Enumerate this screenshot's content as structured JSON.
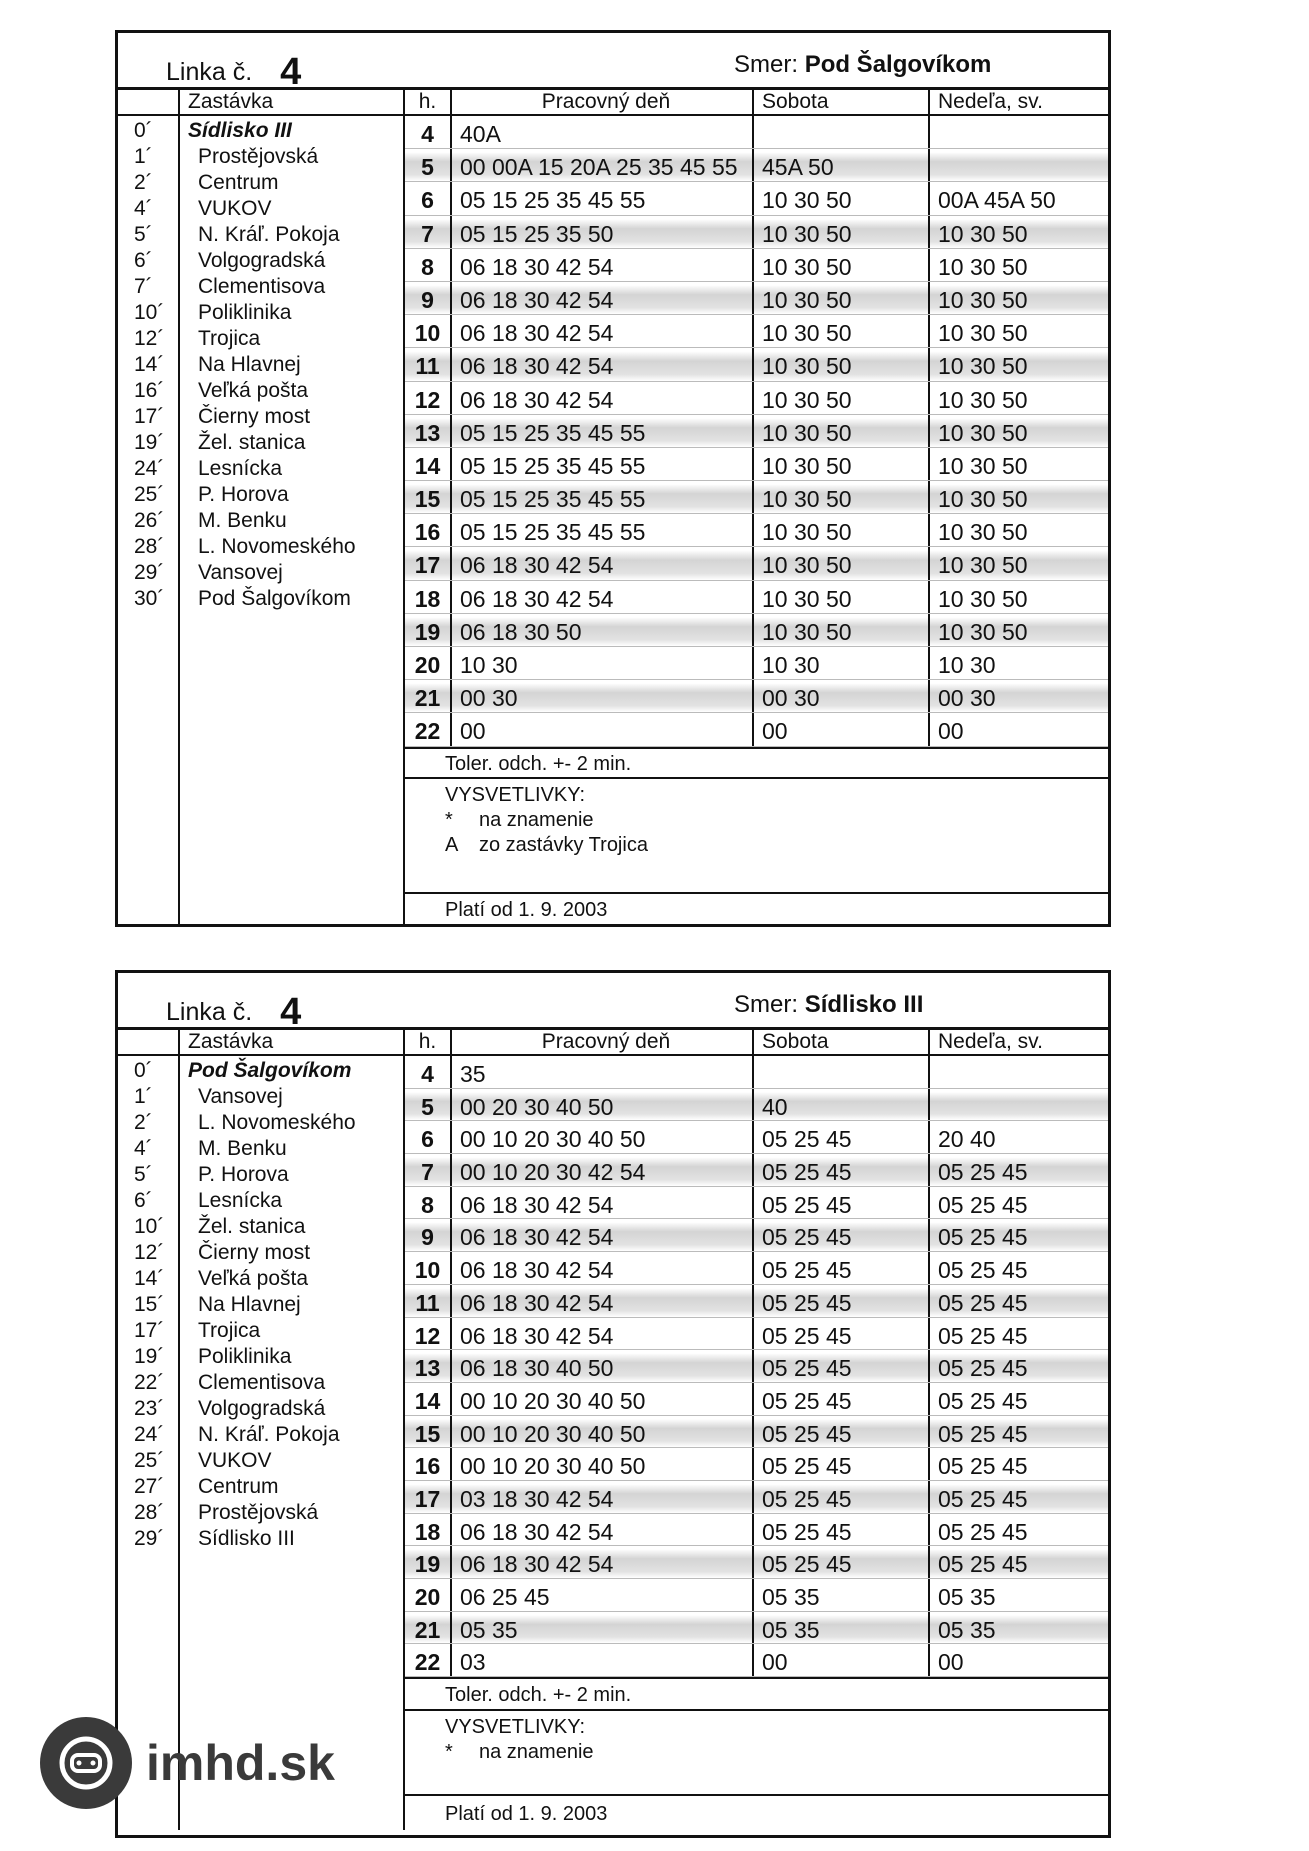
{
  "tables": [
    {
      "line_label": "Linka č.",
      "line": "4",
      "dir_label": "Smer:",
      "direction": "Pod Šalgovíkom",
      "headers": {
        "stop": "Zastávka",
        "hour": "h.",
        "work": "Pracovný deň",
        "sat": "Sobota",
        "sun": "Nedeľa, sv."
      },
      "stops": [
        [
          "0´",
          "Sídlisko III"
        ],
        [
          "1´",
          "Prostějovská"
        ],
        [
          "2´",
          "Centrum"
        ],
        [
          "4´",
          "VUKOV"
        ],
        [
          "5´",
          "N. Kráľ. Pokoja"
        ],
        [
          "6´",
          "Volgogradská"
        ],
        [
          "7´",
          "Clementisova"
        ],
        [
          "10´",
          "Poliklinika"
        ],
        [
          "12´",
          "Trojica"
        ],
        [
          "14´",
          "Na Hlavnej"
        ],
        [
          "16´",
          "Veľká pošta"
        ],
        [
          "17´",
          "Čierny most"
        ],
        [
          "19´",
          "Žel. stanica"
        ],
        [
          "24´",
          "Lesnícka"
        ],
        [
          "25´",
          "P. Horova"
        ],
        [
          "26´",
          "M. Benku"
        ],
        [
          "28´",
          "L. Novomeského"
        ],
        [
          "29´",
          "Vansovej"
        ],
        [
          "30´",
          "Pod Šalgovíkom"
        ]
      ],
      "rows": [
        [
          "4",
          "40A",
          "",
          ""
        ],
        [
          "5",
          "00 00A 15 20A 25 35 45 55",
          "45A 50",
          ""
        ],
        [
          "6",
          "05 15 25 35 45 55",
          "10 30 50",
          "00A 45A 50"
        ],
        [
          "7",
          "05 15 25 35 50",
          "10 30 50",
          "10 30 50"
        ],
        [
          "8",
          "06 18 30 42 54",
          "10 30 50",
          "10 30 50"
        ],
        [
          "9",
          "06 18 30 42 54",
          "10 30 50",
          "10 30 50"
        ],
        [
          "10",
          "06 18 30 42 54",
          "10 30 50",
          "10 30 50"
        ],
        [
          "11",
          "06 18 30 42 54",
          "10 30 50",
          "10 30 50"
        ],
        [
          "12",
          "06 18 30 42 54",
          "10 30 50",
          "10 30 50"
        ],
        [
          "13",
          "05 15 25 35 45 55",
          "10 30 50",
          "10 30 50"
        ],
        [
          "14",
          "05 15 25 35 45 55",
          "10 30 50",
          "10 30 50"
        ],
        [
          "15",
          "05 15 25 35 45 55",
          "10 30 50",
          "10 30 50"
        ],
        [
          "16",
          "05 15 25 35 45 55",
          "10 30 50",
          "10 30 50"
        ],
        [
          "17",
          "06 18 30 42 54",
          "10 30 50",
          "10 30 50"
        ],
        [
          "18",
          "06 18 30 42 54",
          "10 30 50",
          "10 30 50"
        ],
        [
          "19",
          "06 18 30 50",
          "10 30 50",
          "10 30 50"
        ],
        [
          "20",
          "10 30",
          "10 30",
          "10 30"
        ],
        [
          "21",
          "00 30",
          "00 30",
          "00 30"
        ],
        [
          "22",
          "00",
          "00",
          "00"
        ]
      ],
      "tolerance": "Toler. odch. +- 2 min.",
      "legend_title": "VYSVETLIVKY:",
      "legend": [
        [
          "*",
          "na znamenie"
        ],
        [
          "A",
          "zo zastávky Trojica"
        ]
      ],
      "valid": "Platí od 1. 9. 2003"
    },
    {
      "line_label": "Linka č.",
      "line": "4",
      "dir_label": "Smer:",
      "direction": "Sídlisko III",
      "headers": {
        "stop": "Zastávka",
        "hour": "h.",
        "work": "Pracovný deň",
        "sat": "Sobota",
        "sun": "Nedeľa, sv."
      },
      "stops": [
        [
          "0´",
          "Pod Šalgovíkom"
        ],
        [
          "1´",
          "Vansovej"
        ],
        [
          "2´",
          "L. Novomeského"
        ],
        [
          "4´",
          "M. Benku"
        ],
        [
          "5´",
          "P. Horova"
        ],
        [
          "6´",
          "Lesnícka"
        ],
        [
          "10´",
          "Žel. stanica"
        ],
        [
          "12´",
          "Čierny most"
        ],
        [
          "14´",
          "Veľká pošta"
        ],
        [
          "15´",
          "Na Hlavnej"
        ],
        [
          "17´",
          "Trojica"
        ],
        [
          "19´",
          "Poliklinika"
        ],
        [
          "22´",
          "Clementisova"
        ],
        [
          "23´",
          "Volgogradská"
        ],
        [
          "24´",
          "N. Kráľ. Pokoja"
        ],
        [
          "25´",
          "VUKOV"
        ],
        [
          "27´",
          "Centrum"
        ],
        [
          "28´",
          "Prostějovská"
        ],
        [
          "29´",
          "Sídlisko III"
        ]
      ],
      "rows": [
        [
          "4",
          "35",
          "",
          ""
        ],
        [
          "5",
          "00 20 30 40 50",
          "40",
          ""
        ],
        [
          "6",
          "00 10 20 30 40 50",
          "05 25 45",
          "20 40"
        ],
        [
          "7",
          "00 10 20 30 42 54",
          "05 25 45",
          "05 25 45"
        ],
        [
          "8",
          "06 18 30 42 54",
          "05 25 45",
          "05 25 45"
        ],
        [
          "9",
          "06 18 30 42 54",
          "05 25 45",
          "05 25 45"
        ],
        [
          "10",
          "06 18 30 42 54",
          "05 25 45",
          "05 25 45"
        ],
        [
          "11",
          "06 18 30 42 54",
          "05 25 45",
          "05 25 45"
        ],
        [
          "12",
          "06 18 30 42 54",
          "05 25 45",
          "05 25 45"
        ],
        [
          "13",
          "06 18 30 40 50",
          "05 25 45",
          "05 25 45"
        ],
        [
          "14",
          "00 10 20 30 40 50",
          "05 25 45",
          "05 25 45"
        ],
        [
          "15",
          "00 10 20 30 40 50",
          "05 25 45",
          "05 25 45"
        ],
        [
          "16",
          "00 10 20 30 40 50",
          "05 25 45",
          "05 25 45"
        ],
        [
          "17",
          "03 18 30 42 54",
          "05 25 45",
          "05 25 45"
        ],
        [
          "18",
          "06 18 30 42 54",
          "05 25 45",
          "05 25 45"
        ],
        [
          "19",
          "06 18 30 42 54",
          "05 25 45",
          "05 25 45"
        ],
        [
          "20",
          "06 25 45",
          "05 35",
          "05 35"
        ],
        [
          "21",
          "05 35",
          "05 35",
          "05 35"
        ],
        [
          "22",
          "03",
          "00",
          "00"
        ]
      ],
      "tolerance": "Toler. odch. +- 2 min.",
      "legend_title": "VYSVETLIVKY:",
      "legend": [
        [
          "*",
          "na znamenie"
        ]
      ],
      "valid": "Platí od 1. 9. 2003"
    }
  ],
  "logo": {
    "text": "imhd.sk",
    "icon": "bus-icon"
  }
}
